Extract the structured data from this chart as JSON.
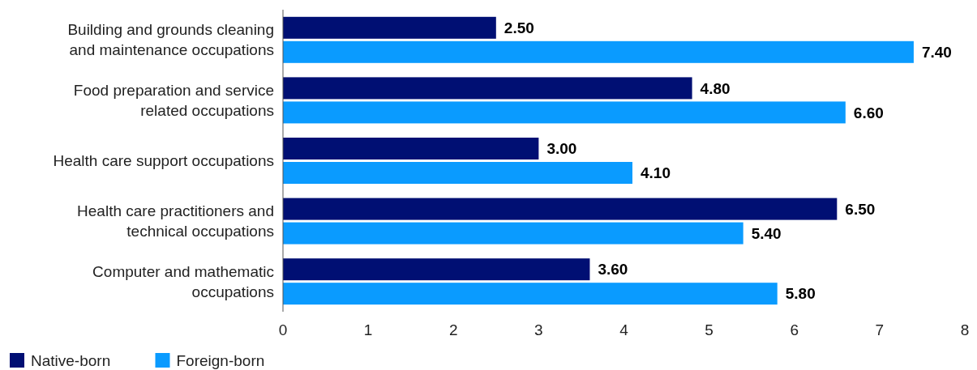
{
  "chart_data": {
    "type": "bar",
    "orientation": "horizontal",
    "categories": [
      "Building and grounds cleaning and maintenance occupations",
      "Food preparation and service related occupations",
      "Health care support occupations",
      "Health care practitioners and technical occupations",
      "Computer and mathematic occupations"
    ],
    "series": [
      {
        "name": "Native-born",
        "color": "#000f73",
        "values": [
          2.5,
          4.8,
          3.0,
          6.5,
          3.6
        ],
        "value_labels": [
          "2.50",
          "4.80",
          "3.00",
          "6.50",
          "3.60"
        ]
      },
      {
        "name": "Foreign-born",
        "color": "#0a9bff",
        "values": [
          7.4,
          6.6,
          4.1,
          5.4,
          5.8
        ],
        "value_labels": [
          "7.40",
          "6.60",
          "4.10",
          "5.40",
          "5.80"
        ]
      }
    ],
    "xlim": [
      0,
      8
    ],
    "xticks": [
      0,
      1,
      2,
      3,
      4,
      5,
      6,
      7,
      8
    ],
    "grid": false,
    "legend": "bottom left"
  }
}
